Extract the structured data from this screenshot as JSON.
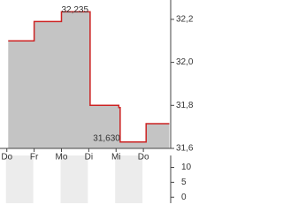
{
  "chart_data": [
    {
      "type": "line",
      "color": "#cc2222",
      "fill": "#c4c4c4",
      "series": [
        {
          "x": [
            0.05,
            1,
            1,
            2,
            2,
            3.05,
            3.05,
            4.1,
            4.1,
            4.15,
            4.15,
            5.1,
            5.1,
            5.95
          ],
          "values": [
            32.1,
            32.1,
            32.19,
            32.19,
            32.235,
            32.235,
            31.8,
            31.8,
            31.79,
            31.79,
            31.63,
            31.63,
            31.715,
            31.715
          ]
        }
      ],
      "xlim": [
        -0.25,
        6
      ],
      "xticks": [
        {
          "value": 0,
          "label": "Do"
        },
        {
          "value": 1,
          "label": "Fr"
        },
        {
          "value": 2,
          "label": "Mo"
        },
        {
          "value": 3,
          "label": "Di"
        },
        {
          "value": 4,
          "label": "Mi"
        },
        {
          "value": 5,
          "label": "Do"
        }
      ],
      "ylim": [
        31.6,
        32.29
      ],
      "yticks": [
        {
          "value": 31.6,
          "label": "31,6"
        },
        {
          "value": 31.8,
          "label": "31,8"
        },
        {
          "value": 32.0,
          "label": "32,0"
        },
        {
          "value": 32.2,
          "label": "32,2"
        }
      ],
      "annotations": [
        {
          "x": 2,
          "value": 32.235,
          "label": "32,235"
        },
        {
          "x": 4.15,
          "value": 31.63,
          "label": "31,630"
        }
      ]
    },
    {
      "type": "bar",
      "ylim": [
        -2,
        14
      ],
      "yticks": [
        0,
        5,
        10
      ]
    }
  ]
}
